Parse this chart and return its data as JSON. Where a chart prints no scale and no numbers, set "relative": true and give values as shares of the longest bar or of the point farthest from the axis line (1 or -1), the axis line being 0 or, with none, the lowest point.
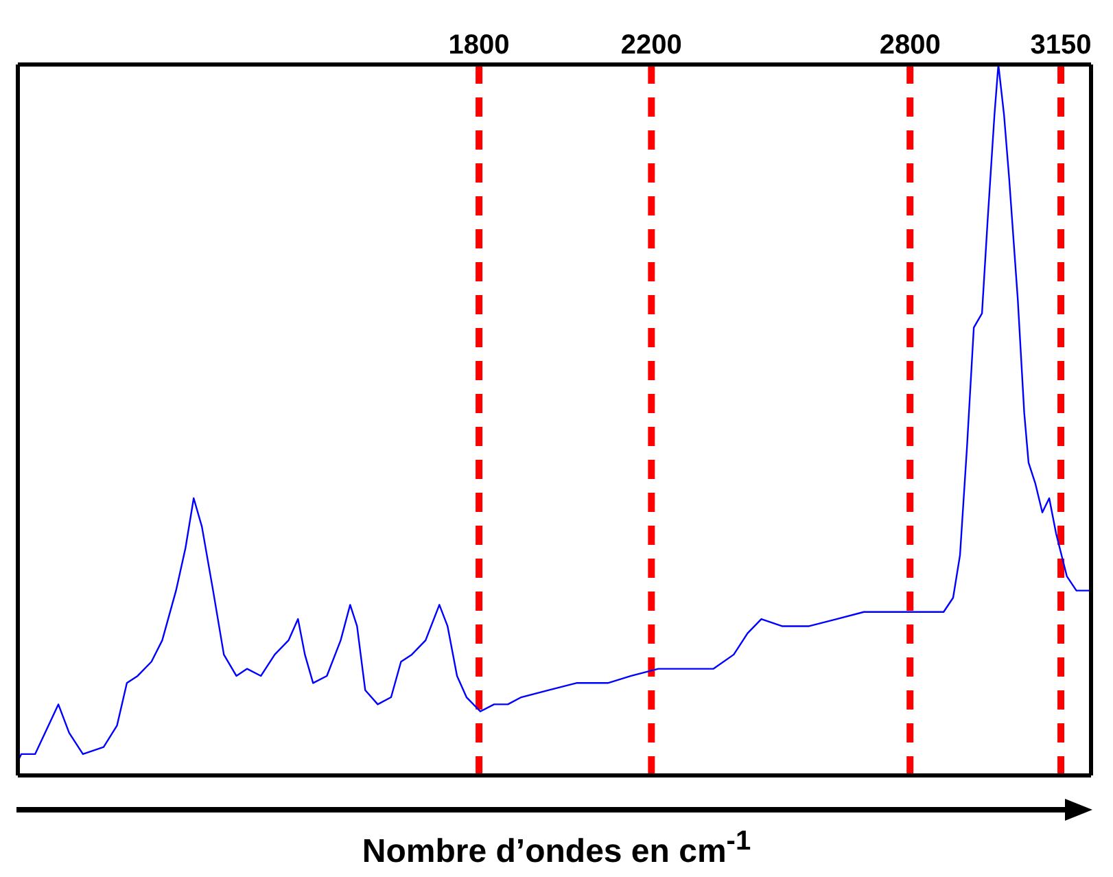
{
  "chart_data": {
    "type": "line",
    "xlabel": "Nombre d’ondes en cm$^{-1}$",
    "relative": true,
    "tick_labels": "x",
    "xlim": [
      730,
      3220
    ],
    "xticks": [
      1800,
      2200,
      2800,
      3150
    ],
    "color": "#0000ff",
    "marker": "none",
    "line_style": "solid",
    "x": [
      730,
      738,
      770,
      824,
      849,
      881,
      929,
      960,
      983,
      1008,
      1040,
      1065,
      1097,
      1119,
      1138,
      1157,
      1183,
      1208,
      1237,
      1262,
      1294,
      1326,
      1358,
      1380,
      1396,
      1415,
      1447,
      1479,
      1501,
      1517,
      1536,
      1565,
      1596,
      1619,
      1644,
      1676,
      1708,
      1727,
      1749,
      1771,
      1803,
      1835,
      1867,
      1898,
      1962,
      2026,
      2099,
      2153,
      2216,
      2280,
      2344,
      2391,
      2423,
      2455,
      2503,
      2566,
      2630,
      2693,
      2757,
      2821,
      2878,
      2900,
      2916,
      2932,
      2948,
      2967,
      2980,
      2996,
      3005,
      3018,
      3030,
      3050,
      3065,
      3075,
      3091,
      3107,
      3123,
      3139,
      3164,
      3186,
      3220
    ],
    "values": [
      0.02,
      0.03,
      0.03,
      0.1,
      0.06,
      0.03,
      0.04,
      0.07,
      0.13,
      0.14,
      0.16,
      0.19,
      0.26,
      0.32,
      0.39,
      0.35,
      0.26,
      0.17,
      0.14,
      0.15,
      0.14,
      0.17,
      0.19,
      0.22,
      0.17,
      0.13,
      0.14,
      0.19,
      0.24,
      0.21,
      0.12,
      0.1,
      0.11,
      0.16,
      0.17,
      0.19,
      0.24,
      0.21,
      0.14,
      0.11,
      0.09,
      0.1,
      0.1,
      0.11,
      0.12,
      0.13,
      0.13,
      0.14,
      0.15,
      0.15,
      0.15,
      0.17,
      0.2,
      0.22,
      0.21,
      0.21,
      0.22,
      0.23,
      0.23,
      0.23,
      0.23,
      0.25,
      0.31,
      0.46,
      0.63,
      0.65,
      0.78,
      0.93,
      1,
      0.93,
      0.84,
      0.67,
      0.51,
      0.44,
      0.41,
      0.37,
      0.39,
      0.34,
      0.28,
      0.26,
      0.26
    ],
    "ref_lines": [
      {
        "axis": "x",
        "value": 1800,
        "color": "#ff0000",
        "line_style": "dashed"
      },
      {
        "axis": "x",
        "value": 2200,
        "color": "#ff0000",
        "line_style": "dashed"
      },
      {
        "axis": "x",
        "value": 2800,
        "color": "#ff0000",
        "line_style": "dashed"
      },
      {
        "axis": "x",
        "value": 3150,
        "color": "#ff0000",
        "line_style": "dashed"
      }
    ]
  }
}
